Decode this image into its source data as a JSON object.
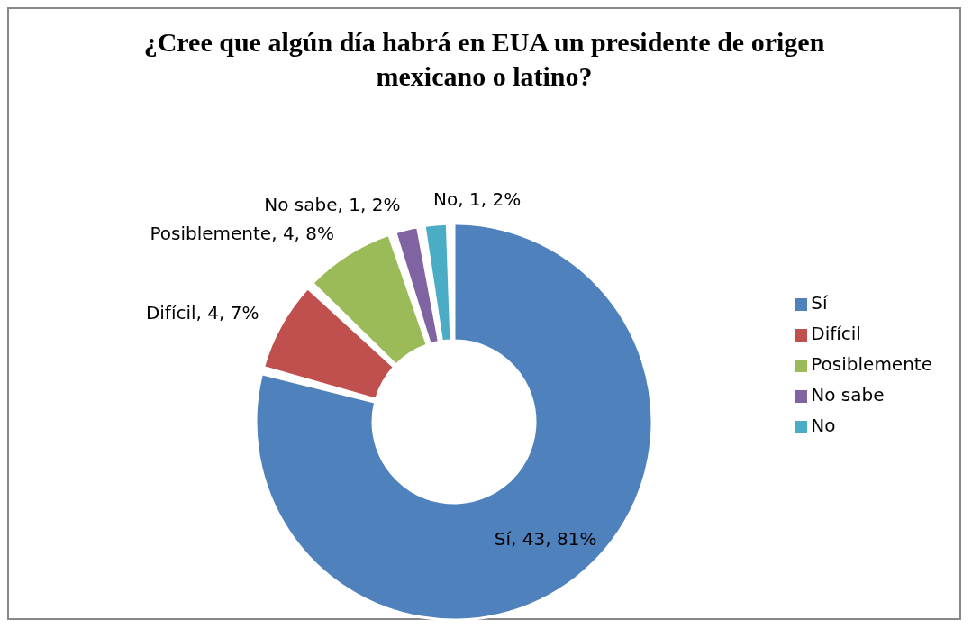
{
  "chart_data": {
    "type": "donut",
    "title": "¿Cree que algún día habrá en EUA un presidente de origen mexicano o latino?",
    "categories": [
      "Sí",
      "Difícil",
      "Posiblemente",
      "No sabe",
      "No"
    ],
    "values": [
      43,
      4,
      4,
      1,
      1
    ],
    "colors": [
      "#4f81bd",
      "#c0504d",
      "#9bbb59",
      "#8064a2",
      "#4bacc6"
    ],
    "value_labels": [
      "Sí, 43, 81%",
      "Difícil, 4, 7%",
      "Posiblemente, 4, 8%",
      "No sabe, 1, 2%",
      "No, 1, 2%"
    ],
    "legend": "right"
  }
}
